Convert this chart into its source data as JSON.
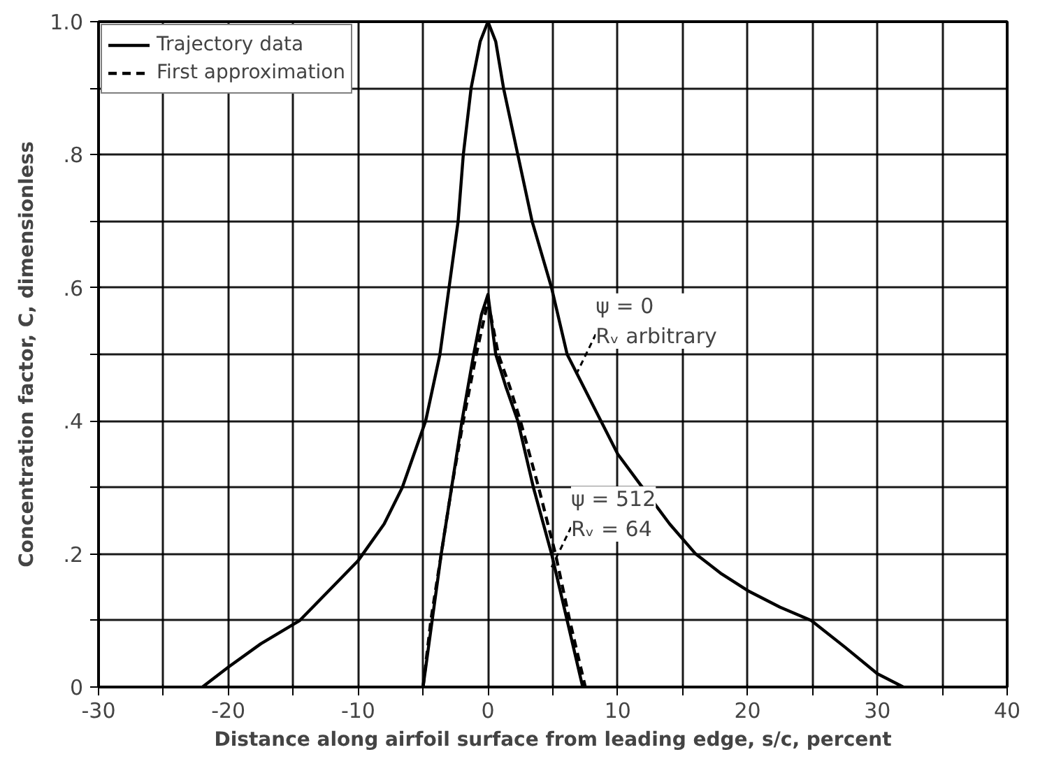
{
  "chart_data": {
    "type": "line",
    "xlabel": "Distance along airfoil surface from leading edge, s/c, percent",
    "ylabel": "Concentration factor, C, dimensionless",
    "xlim": [
      -30,
      40
    ],
    "ylim": [
      0,
      1.0
    ],
    "xticks": [
      -30,
      {
        "value": -25,
        "label": null
      },
      -20,
      {
        "value": -15,
        "label": null
      },
      -10,
      {
        "value": -5,
        "label": null
      },
      0,
      {
        "value": 5,
        "label": null
      },
      10,
      {
        "value": 15,
        "label": null
      },
      20,
      {
        "value": 25,
        "label": null
      },
      30,
      {
        "value": 35,
        "label": null
      },
      40
    ],
    "yticks": [
      0,
      {
        "value": 0.1,
        "label": null
      },
      {
        "value": 0.2,
        "label": ".2"
      },
      {
        "value": 0.3,
        "label": null
      },
      {
        "value": 0.4,
        "label": ".4"
      },
      {
        "value": 0.5,
        "label": null
      },
      {
        "value": 0.6,
        "label": ".6"
      },
      {
        "value": 0.7,
        "label": null
      },
      {
        "value": 0.8,
        "label": ".8"
      },
      {
        "value": 0.9,
        "label": null
      },
      {
        "value": 1.0,
        "label": "1.0"
      }
    ],
    "grid": true,
    "legend": "top left",
    "line_style": "solid",
    "series": [
      {
        "name": "Trajectory data",
        "color": "#000000",
        "x": [
          -22,
          -20,
          -17.5,
          -14.5,
          -12,
          -10,
          -8,
          -6.6,
          -4.8,
          -3.7,
          -3.0,
          -2.3,
          -1.9,
          -1.3,
          -0.6,
          0,
          0.6,
          1.2,
          2.3,
          3.4,
          4.9,
          6.1,
          8.7,
          10,
          11.9,
          14,
          16,
          18,
          20,
          22.5,
          24.9,
          27.5,
          30,
          32
        ],
        "values": [
          0,
          0.03,
          0.065,
          0.1,
          0.15,
          0.19,
          0.245,
          0.3,
          0.4,
          0.5,
          0.6,
          0.7,
          0.8,
          0.9,
          0.97,
          1.0,
          0.97,
          0.9,
          0.8,
          0.7,
          0.6,
          0.5,
          0.4,
          0.35,
          0.3,
          0.245,
          0.2,
          0.17,
          0.145,
          0.12,
          0.1,
          0.06,
          0.02,
          0
        ]
      },
      {
        "color": "#000000",
        "x": [
          -5,
          -4.3,
          -3.6,
          -2.8,
          -2.0,
          -1.1,
          -0.5,
          0,
          0.6,
          1.4,
          2.3,
          3.5,
          4.9,
          6.1,
          7.3
        ],
        "values": [
          0,
          0.1,
          0.2,
          0.3,
          0.4,
          0.5,
          0.56,
          0.59,
          0.5,
          0.45,
          0.4,
          0.3,
          0.2,
          0.1,
          0
        ]
      },
      {
        "name": "First approximation",
        "color": "#000000",
        "line_style": "dashed",
        "x": [
          -5,
          -4.4,
          -3.6,
          -2.8,
          -1.9,
          -0.9,
          0,
          0.8,
          1.7,
          2.5,
          3.9,
          5.2,
          6.3,
          7.5
        ],
        "values": [
          0,
          0.1,
          0.2,
          0.3,
          0.4,
          0.5,
          0.58,
          0.5,
          0.45,
          0.4,
          0.3,
          0.2,
          0.1,
          0
        ]
      }
    ],
    "annotations": [
      {
        "text": "ψ = 0\nRᵥ arbitrary",
        "x": 6.8,
        "y": 0.47
      },
      {
        "text": "ψ = 512\nRᵥ = 64",
        "x": 4.9,
        "y": 0.18
      }
    ]
  }
}
